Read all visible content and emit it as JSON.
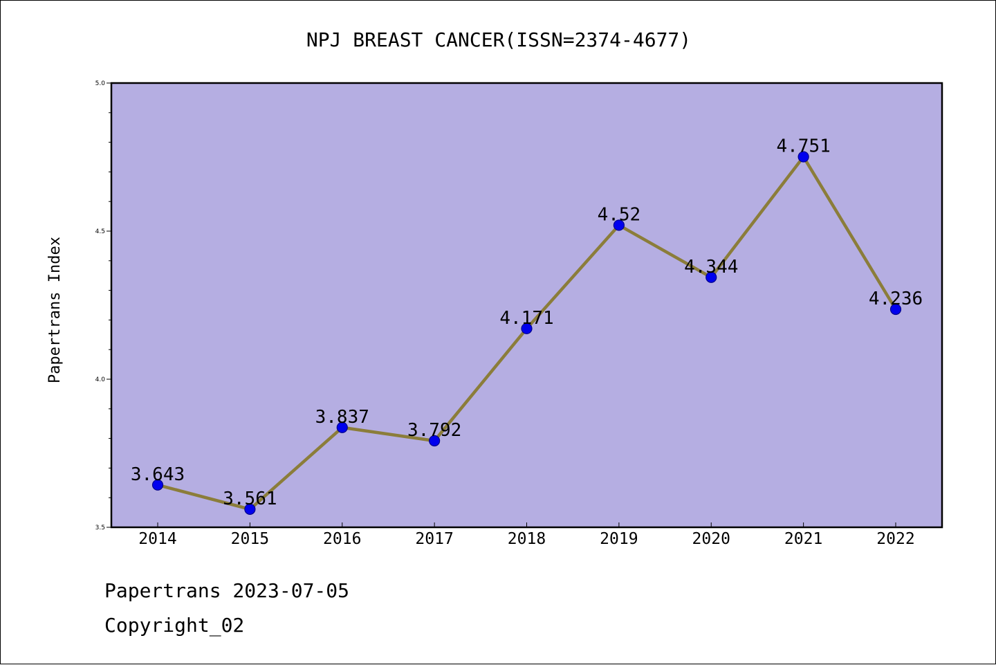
{
  "chart_data": {
    "type": "line",
    "title": "NPJ BREAST CANCER(ISSN=2374-4677)",
    "xlabel": "",
    "ylabel": "Papertrans Index",
    "categories": [
      "2014",
      "2015",
      "2016",
      "2017",
      "2018",
      "2019",
      "2020",
      "2021",
      "2022"
    ],
    "values": [
      3.643,
      3.561,
      3.837,
      3.792,
      4.171,
      4.52,
      4.344,
      4.751,
      4.236
    ],
    "data_labels": [
      "3.643",
      "3.561",
      "3.837",
      "3.792",
      "4.171",
      "4.52",
      "4.344",
      "4.751",
      "4.236"
    ],
    "ylim": [
      3.5,
      5.0
    ],
    "yticks": [
      "3.5",
      "4.0",
      "4.5",
      "5.0"
    ],
    "grid": false,
    "legend": "none",
    "colors": {
      "plot_background": "#b5aee2",
      "line": "#8b7d3a",
      "marker": "#0000ee",
      "marker_edge": "#00008b"
    }
  },
  "footer": {
    "line1": "Papertrans 2023-07-05",
    "line2": "Copyright_02"
  }
}
